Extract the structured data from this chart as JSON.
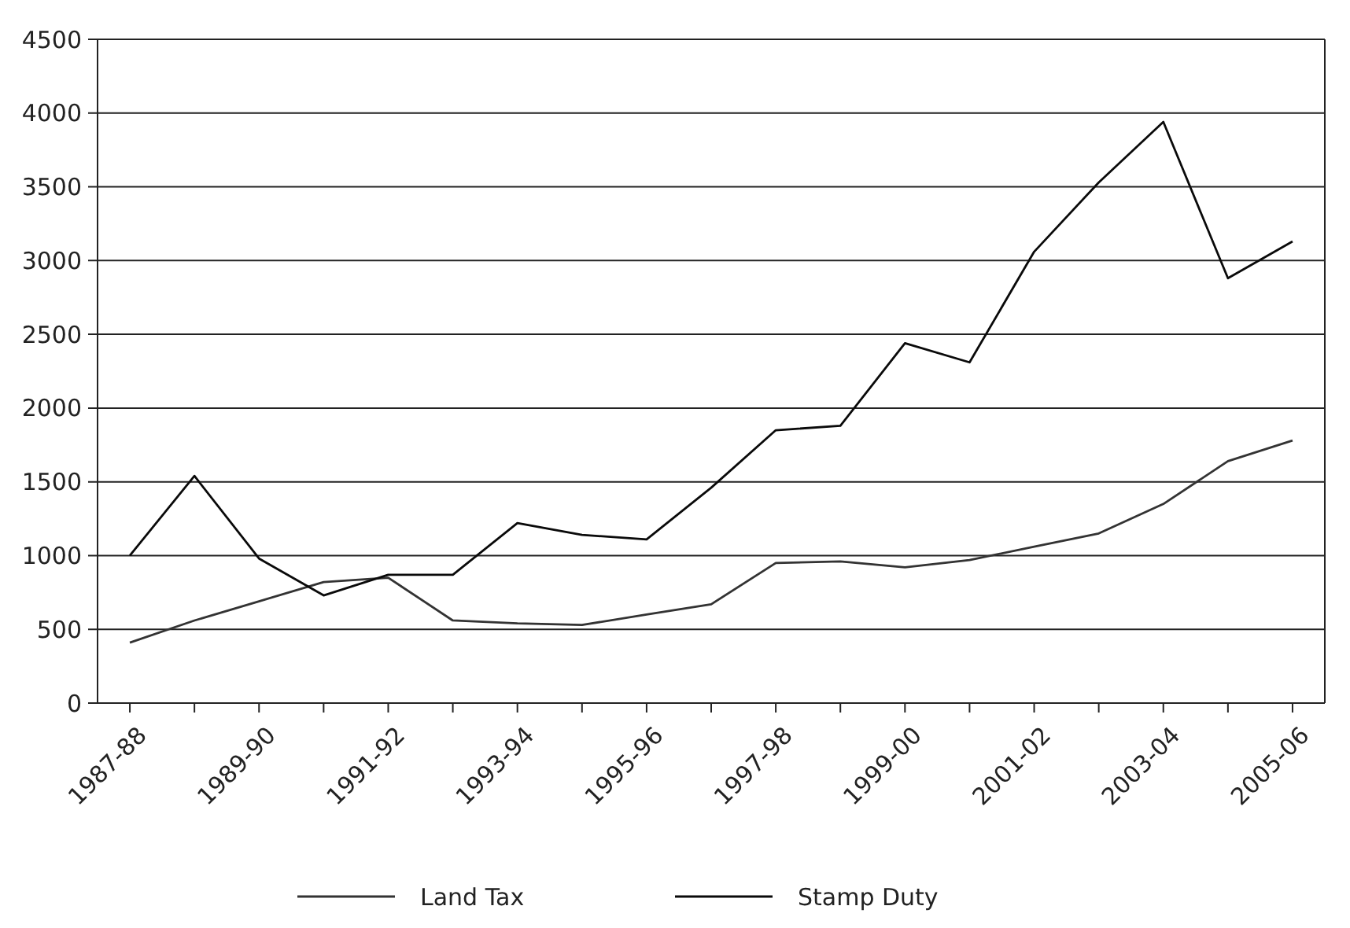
{
  "chart_data": {
    "type": "line",
    "categories": [
      "1987-88",
      null,
      "1989-90",
      null,
      "1991-92",
      null,
      "1993-94",
      null,
      "1995-96",
      null,
      "1997-98",
      null,
      "1999-00",
      null,
      "2001-02",
      null,
      "2003-04",
      null,
      "2005-06"
    ],
    "series": [
      {
        "name": "Land Tax",
        "color": "#333333",
        "values": [
          410,
          560,
          690,
          820,
          850,
          560,
          540,
          530,
          600,
          670,
          950,
          960,
          920,
          970,
          1060,
          1150,
          1350,
          1640,
          1780
        ]
      },
      {
        "name": "Stamp Duty",
        "color": "#0a0a0a",
        "values": [
          1000,
          1540,
          980,
          730,
          870,
          870,
          1220,
          1140,
          1110,
          1460,
          1850,
          1880,
          2440,
          2310,
          3060,
          3530,
          3940,
          2880,
          3130
        ]
      }
    ],
    "ylim": [
      0,
      4500
    ],
    "yticks": [
      0,
      500,
      1000,
      1500,
      2000,
      2500,
      3000,
      3500,
      4000,
      4500
    ],
    "grid": "y",
    "legend": "bottom",
    "marker": "none",
    "line_style": "solid"
  }
}
